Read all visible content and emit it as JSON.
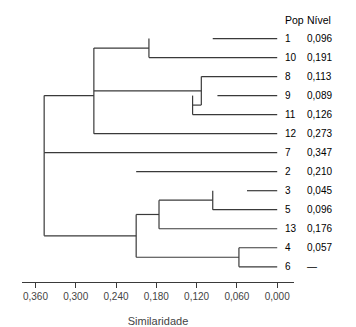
{
  "chart_data": {
    "type": "dendrogram",
    "xlabel": "Similaridade",
    "xlim": [
      0.38,
      -0.025
    ],
    "ylim": [
      -0.8,
      13.5
    ],
    "xticks": [
      {
        "value": 0.36,
        "label": "0,360"
      },
      {
        "value": 0.3,
        "label": "0,300"
      },
      {
        "value": 0.24,
        "label": "0,240"
      },
      {
        "value": 0.18,
        "label": "0,180"
      },
      {
        "value": 0.12,
        "label": "0,120"
      },
      {
        "value": 0.06,
        "label": "0,060"
      },
      {
        "value": 0.0,
        "label": "0,000"
      }
    ],
    "tick_labels": "x",
    "grid": false,
    "color": "#3a3a3a",
    "columns": [
      {
        "name": "Pop",
        "values": [
          "1",
          "10",
          "8",
          "9",
          "11",
          "12",
          "7",
          "2",
          "3",
          "5",
          "13",
          "4",
          "6"
        ]
      },
      {
        "name": "Nível",
        "values": [
          "0,096",
          "0,191",
          "0,113",
          "0,089",
          "0,126",
          "0,273",
          "0,347",
          "0,210",
          "0,045",
          "0,096",
          "0,176",
          "0,057",
          "—"
        ]
      }
    ],
    "segments": [
      {
        "x": [
          0.0,
          0.096
        ],
        "y": [
          12,
          12
        ]
      },
      {
        "x": [
          0.0,
          0.191
        ],
        "y": [
          11,
          11
        ]
      },
      {
        "x": [
          0.191,
          0.191
        ],
        "y": [
          11,
          12
        ]
      },
      {
        "x": [
          0.191,
          0.273
        ],
        "y": [
          11.5,
          11.5
        ]
      },
      {
        "x": [
          0.0,
          0.113
        ],
        "y": [
          10,
          10
        ]
      },
      {
        "x": [
          0.0,
          0.089
        ],
        "y": [
          9,
          9
        ]
      },
      {
        "x": [
          0.0,
          0.126
        ],
        "y": [
          8,
          8
        ]
      },
      {
        "x": [
          0.126,
          0.126
        ],
        "y": [
          8,
          9
        ]
      },
      {
        "x": [
          0.126,
          0.113
        ],
        "y": [
          8.5,
          8.5
        ]
      },
      {
        "x": [
          0.113,
          0.113
        ],
        "y": [
          8.5,
          10
        ]
      },
      {
        "x": [
          0.113,
          0.273
        ],
        "y": [
          9.25,
          9.25
        ]
      },
      {
        "x": [
          0.0,
          0.273
        ],
        "y": [
          7,
          7
        ]
      },
      {
        "x": [
          0.273,
          0.273
        ],
        "y": [
          7,
          11.5
        ]
      },
      {
        "x": [
          0.273,
          0.273
        ],
        "y": [
          9.25,
          9.25
        ]
      },
      {
        "x": [
          0.0,
          0.347
        ],
        "y": [
          6,
          6
        ]
      },
      {
        "x": [
          0.347,
          0.347
        ],
        "y": [
          6,
          9.0
        ]
      },
      {
        "x": [
          0.273,
          0.347
        ],
        "y": [
          9.0,
          9.0
        ]
      },
      {
        "x": [
          0.0,
          0.21
        ],
        "y": [
          5,
          5
        ]
      },
      {
        "x": [
          0.0,
          0.045
        ],
        "y": [
          4,
          4
        ]
      },
      {
        "x": [
          0.0,
          0.096
        ],
        "y": [
          3,
          3
        ]
      },
      {
        "x": [
          0.096,
          0.096
        ],
        "y": [
          3,
          4
        ]
      },
      {
        "x": [
          0.096,
          0.176
        ],
        "y": [
          3.5,
          3.5
        ]
      },
      {
        "x": [
          0.0,
          0.176
        ],
        "y": [
          2,
          2
        ]
      },
      {
        "x": [
          0.176,
          0.176
        ],
        "y": [
          2,
          3.5
        ]
      },
      {
        "x": [
          0.176,
          0.21
        ],
        "y": [
          2.75,
          2.75
        ]
      },
      {
        "x": [
          0.0,
          0.057
        ],
        "y": [
          1,
          1
        ]
      },
      {
        "x": [
          0.0,
          0.057
        ],
        "y": [
          0,
          0
        ]
      },
      {
        "x": [
          0.057,
          0.057
        ],
        "y": [
          0,
          1
        ]
      },
      {
        "x": [
          0.057,
          0.21
        ],
        "y": [
          0.5,
          0.5
        ]
      },
      {
        "x": [
          0.21,
          0.21
        ],
        "y": [
          0.5,
          2.75
        ]
      },
      {
        "x": [
          0.21,
          0.347
        ],
        "y": [
          1.625,
          1.625
        ]
      },
      {
        "x": [
          0.347,
          0.347
        ],
        "y": [
          1.625,
          6
        ]
      },
      {
        "x": [
          0.347,
          0.347
        ],
        "y": [
          3.8125,
          3.8125
        ]
      }
    ]
  }
}
